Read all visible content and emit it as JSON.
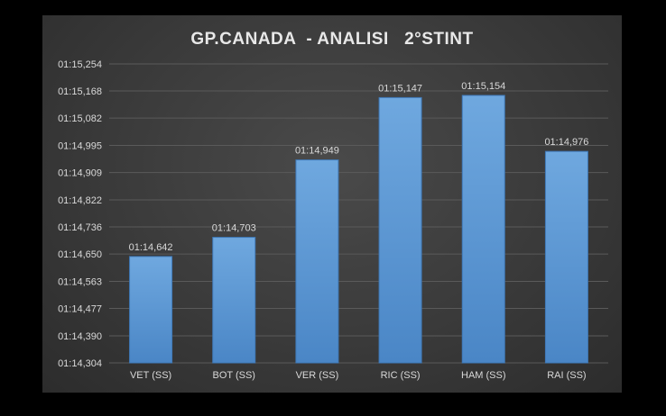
{
  "chart_data": {
    "type": "bar",
    "title": "GP.CANADA  - ANALISI   2°STINT",
    "categories": [
      "VET (SS)",
      "BOT (SS)",
      "VER (SS)",
      "RIC (SS)",
      "HAM (SS)",
      "RAI (SS)"
    ],
    "values": [
      74.642,
      74.703,
      74.949,
      75.147,
      75.154,
      74.976
    ],
    "data_labels": [
      "01:14,642",
      "01:14,703",
      "01:14,949",
      "01:15,147",
      "01:15,154",
      "01:14,976"
    ],
    "yticks": [
      {
        "value": 74.304,
        "label": "01:14,304"
      },
      {
        "value": 74.39,
        "label": "01:14,390"
      },
      {
        "value": 74.477,
        "label": "01:14,477"
      },
      {
        "value": 74.563,
        "label": "01:14,563"
      },
      {
        "value": 74.65,
        "label": "01:14,650"
      },
      {
        "value": 74.736,
        "label": "01:14,736"
      },
      {
        "value": 74.822,
        "label": "01:14,822"
      },
      {
        "value": 74.909,
        "label": "01:14,909"
      },
      {
        "value": 74.995,
        "label": "01:14,995"
      },
      {
        "value": 75.082,
        "label": "01:15,082"
      },
      {
        "value": 75.168,
        "label": "01:15,168"
      },
      {
        "value": 75.254,
        "label": "01:15,254"
      }
    ],
    "ylim": [
      74.304,
      75.254
    ],
    "grid": true,
    "xlabel": "",
    "ylabel": "",
    "colors": {
      "bar_top": "#6fa8df",
      "bar_bottom": "#4a86c6",
      "background": "#3d3d3d"
    }
  }
}
